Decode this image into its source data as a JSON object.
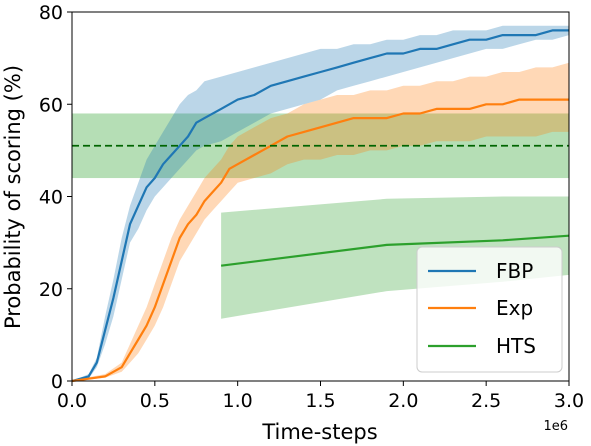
{
  "chart_data": {
    "type": "line",
    "xlabel": "Time-steps",
    "ylabel": "Probability of scoring (%)",
    "x_offset_label": "1e6",
    "xlim": [
      0.0,
      3.0
    ],
    "ylim": [
      0,
      80
    ],
    "xticks": [
      "0.0",
      "0.5",
      "1.0",
      "1.5",
      "2.0",
      "2.5",
      "3.0"
    ],
    "yticks": [
      "0",
      "20",
      "40",
      "60",
      "80"
    ],
    "grid": false,
    "legend_position": "lower-right",
    "series": [
      {
        "name": "FBP",
        "color": "#1f77b4",
        "x": [
          0.0,
          0.1,
          0.15,
          0.2,
          0.25,
          0.3,
          0.35,
          0.4,
          0.45,
          0.5,
          0.55,
          0.6,
          0.65,
          0.7,
          0.75,
          0.8,
          0.9,
          1.0,
          1.1,
          1.2,
          1.3,
          1.4,
          1.5,
          1.6,
          1.7,
          1.8,
          1.9,
          2.0,
          2.1,
          2.2,
          2.3,
          2.4,
          2.5,
          2.6,
          2.7,
          2.8,
          2.9,
          3.0
        ],
        "y": [
          0,
          1,
          4,
          11,
          18,
          26,
          34,
          38,
          42,
          44,
          47,
          49,
          51,
          53,
          56,
          57,
          59,
          61,
          62,
          64,
          65,
          66,
          67,
          68,
          69,
          70,
          71,
          71,
          72,
          72,
          73,
          74,
          74,
          75,
          75,
          75,
          76,
          76
        ],
        "lower": [
          0,
          0.5,
          3,
          8,
          14,
          22,
          30,
          33,
          37,
          40,
          42,
          44,
          46,
          48,
          50,
          51,
          52,
          54,
          56,
          58,
          59,
          60,
          61,
          63,
          64,
          65,
          66,
          67,
          68,
          69,
          70,
          71,
          72,
          72,
          73,
          74,
          74,
          75
        ],
        "upper": [
          0,
          1.5,
          5,
          14,
          22,
          31,
          38,
          43,
          48,
          51,
          54,
          57,
          60,
          62,
          63,
          65,
          66,
          67,
          68,
          69,
          70,
          71,
          72,
          72,
          73,
          73,
          74,
          74,
          75,
          75,
          76,
          76,
          76,
          77,
          77,
          77,
          77,
          77
        ]
      },
      {
        "name": "Exp",
        "color": "#ff7f0e",
        "x": [
          0.0,
          0.1,
          0.2,
          0.3,
          0.35,
          0.4,
          0.45,
          0.5,
          0.55,
          0.6,
          0.65,
          0.7,
          0.75,
          0.8,
          0.85,
          0.9,
          0.95,
          1.0,
          1.1,
          1.2,
          1.3,
          1.4,
          1.5,
          1.6,
          1.7,
          1.8,
          1.9,
          2.0,
          2.1,
          2.2,
          2.3,
          2.4,
          2.5,
          2.6,
          2.7,
          2.8,
          2.9,
          3.0
        ],
        "y": [
          0,
          0.5,
          1,
          3,
          6,
          9,
          12,
          16,
          21,
          26,
          31,
          34,
          36,
          39,
          41,
          43,
          46,
          47,
          49,
          51,
          53,
          54,
          55,
          56,
          57,
          57,
          57,
          58,
          58,
          59,
          59,
          59,
          60,
          60,
          61,
          61,
          61,
          61
        ],
        "lower": [
          0,
          0.3,
          0.7,
          2,
          4,
          6,
          9,
          12,
          16,
          21,
          26,
          29,
          32,
          35,
          37,
          39,
          41,
          43,
          44,
          45,
          47,
          48,
          48,
          49,
          49,
          50,
          50,
          51,
          51,
          52,
          52,
          52,
          53,
          53,
          53,
          53,
          54,
          54
        ],
        "upper": [
          0,
          0.8,
          1.5,
          4,
          8,
          12,
          16,
          21,
          26,
          31,
          35,
          38,
          41,
          44,
          46,
          48,
          51,
          53,
          55,
          57,
          58,
          60,
          61,
          62,
          62,
          63,
          63,
          64,
          64,
          65,
          65,
          66,
          66,
          67,
          67,
          68,
          68,
          69
        ]
      },
      {
        "name": "HTS",
        "color": "#2ca02c",
        "x": [
          0.9,
          1.9,
          2.6,
          3.0
        ],
        "y": [
          25,
          29.5,
          30.5,
          31.5
        ],
        "lower": [
          13.5,
          19.5,
          21.5,
          23
        ],
        "upper": [
          36.5,
          39.5,
          40,
          40
        ],
        "baseline": {
          "value": 51,
          "lower": 44,
          "upper": 58
        }
      }
    ]
  }
}
